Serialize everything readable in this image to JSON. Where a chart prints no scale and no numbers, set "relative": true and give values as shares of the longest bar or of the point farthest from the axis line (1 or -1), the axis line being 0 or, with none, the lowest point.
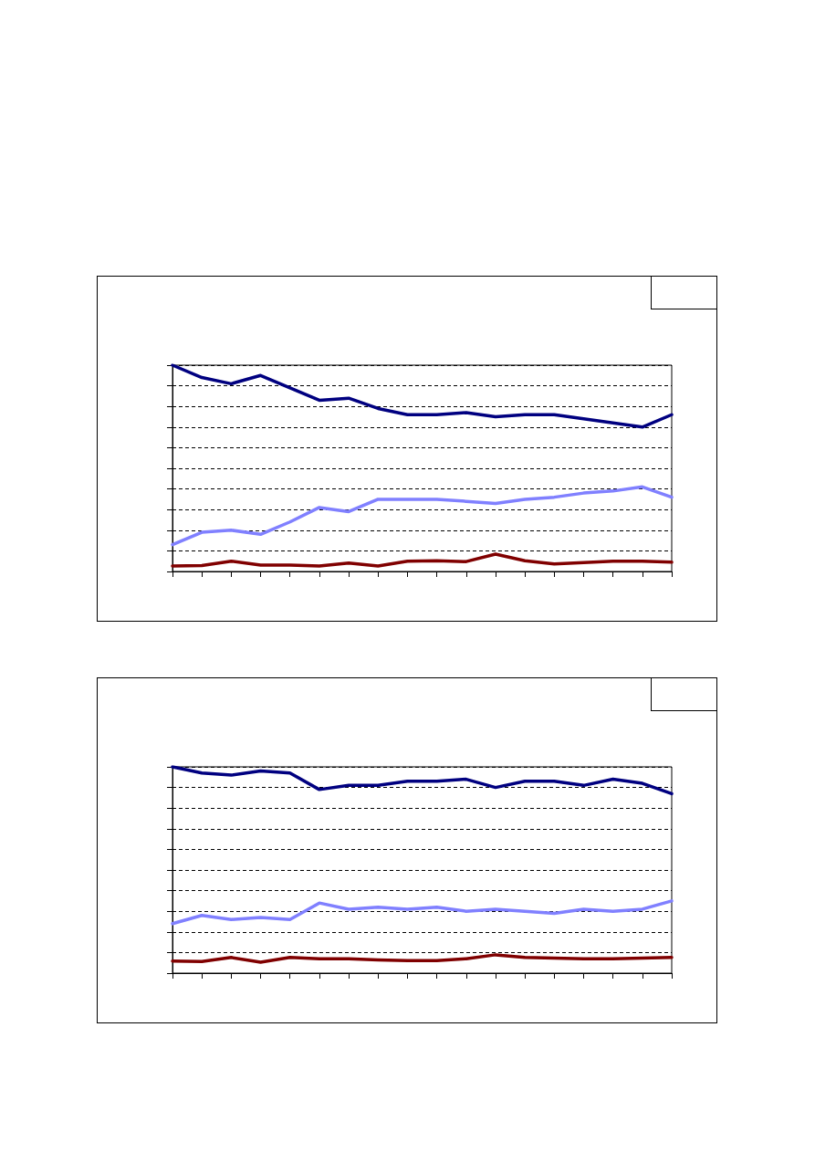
{
  "chart_data": [
    {
      "type": "line",
      "relative": true,
      "categories": [
        null,
        null,
        null,
        null,
        null,
        null,
        null,
        null,
        null,
        null,
        null,
        null,
        null,
        null,
        null,
        null,
        null,
        null
      ],
      "grid": "y",
      "marker": "none",
      "line_style": "solid",
      "series": [
        {
          "color": "#000080",
          "values": [
            1,
            0.94,
            0.91,
            0.95,
            0.89,
            0.83,
            0.84,
            0.79,
            0.76,
            0.76,
            0.77,
            0.75,
            0.76,
            0.76,
            0.74,
            0.72,
            0.7,
            0.76
          ]
        },
        {
          "color": "#8080ff",
          "values": [
            0.13,
            0.19,
            0.2,
            0.18,
            0.24,
            0.31,
            0.29,
            0.35,
            0.35,
            0.35,
            0.34,
            0.33,
            0.35,
            0.36,
            0.38,
            0.39,
            0.41,
            0.36
          ]
        },
        {
          "color": "#800000",
          "values": [
            0.027,
            0.029,
            0.05,
            0.031,
            0.031,
            0.027,
            0.041,
            0.027,
            0.05,
            0.052,
            0.048,
            0.084,
            0.052,
            0.036,
            0.043,
            0.05,
            0.05,
            0.045
          ]
        }
      ]
    },
    {
      "type": "line",
      "relative": true,
      "categories": [
        null,
        null,
        null,
        null,
        null,
        null,
        null,
        null,
        null,
        null,
        null,
        null,
        null,
        null,
        null,
        null,
        null,
        null
      ],
      "grid": "y",
      "marker": "none",
      "line_style": "solid",
      "series": [
        {
          "color": "#000080",
          "values": [
            1,
            0.97,
            0.96,
            0.98,
            0.97,
            0.89,
            0.91,
            0.91,
            0.93,
            0.93,
            0.94,
            0.9,
            0.93,
            0.93,
            0.91,
            0.94,
            0.92,
            0.87
          ]
        },
        {
          "color": "#8080ff",
          "values": [
            0.24,
            0.28,
            0.26,
            0.27,
            0.26,
            0.34,
            0.31,
            0.32,
            0.31,
            0.32,
            0.3,
            0.31,
            0.3,
            0.29,
            0.31,
            0.3,
            0.31,
            0.35
          ]
        },
        {
          "color": "#800000",
          "values": [
            0.059,
            0.056,
            0.076,
            0.053,
            0.076,
            0.07,
            0.07,
            0.064,
            0.061,
            0.061,
            0.07,
            0.089,
            0.076,
            0.073,
            0.07,
            0.07,
            0.073,
            0.076
          ]
        }
      ]
    }
  ]
}
